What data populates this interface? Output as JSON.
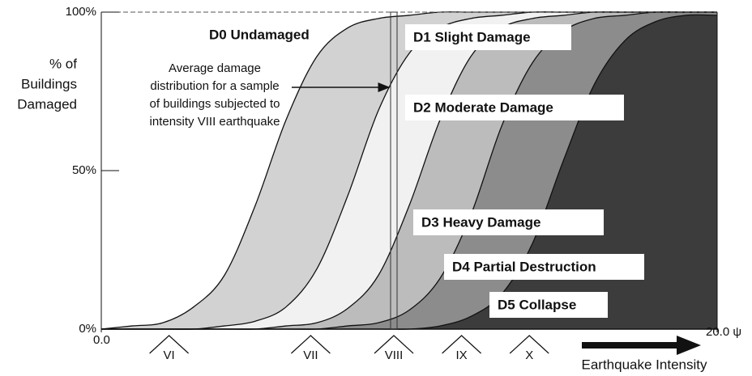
{
  "chart_data": {
    "type": "fragility",
    "y_label": [
      "% of",
      "Buildings",
      "Damaged"
    ],
    "x_label": "Earthquake Intensity",
    "base_label": "D0 Undamaged",
    "annotation": [
      "Average damage",
      "distribution for a sample",
      "of buildings subjected to",
      "intensity VIII earthquake"
    ],
    "x": [
      0,
      1,
      2,
      3,
      4,
      5,
      6,
      7,
      8,
      9,
      10,
      11,
      12,
      13,
      14,
      15,
      16,
      17,
      18,
      19,
      20
    ],
    "series": [
      {
        "name": "D1 Slight Damage",
        "color": "#d2d2d2",
        "values": [
          0,
          1,
          2,
          7,
          17,
          39,
          66,
          86,
          95,
          98,
          99,
          100,
          100,
          100,
          100,
          100,
          100,
          100,
          100,
          100,
          100
        ]
      },
      {
        "name": "D2 Moderate Damage",
        "color": "#f1f1f1",
        "values": [
          0,
          0,
          0,
          0,
          1,
          2.5,
          7,
          19,
          42,
          69,
          87,
          95,
          98,
          99,
          100,
          100,
          100,
          100,
          100,
          100,
          100
        ]
      },
      {
        "name": "D3 Heavy Damage",
        "color": "#bcbcbc",
        "values": [
          0,
          0,
          0,
          0,
          0,
          0,
          1,
          2,
          6.5,
          17,
          39,
          66,
          86,
          95,
          98,
          99,
          100,
          100,
          100,
          100,
          100
        ]
      },
      {
        "name": "D4 Partial Destruction",
        "color": "#8c8c8c",
        "values": [
          0,
          0,
          0,
          0,
          0,
          0,
          0,
          0,
          1,
          2,
          6,
          16,
          36,
          64,
          84,
          94,
          98,
          99,
          100,
          100,
          100
        ]
      },
      {
        "name": "D5 Collapse",
        "color": "#3c3c3c",
        "values": [
          0,
          0,
          0,
          0,
          0,
          0,
          0,
          0,
          0,
          0,
          0,
          1,
          4,
          11,
          27,
          53,
          77,
          91,
          97,
          99,
          99
        ]
      }
    ],
    "intensity_marks": {
      "labels": [
        "VI",
        "VII",
        "VIII",
        "IX",
        "X"
      ],
      "x": [
        2.2,
        6.8,
        9.5,
        11.7,
        13.9
      ]
    },
    "xlim": [
      0,
      20
    ],
    "ylim": [
      0,
      100
    ],
    "xticks": [
      {
        "value": 0,
        "label": "0.0"
      },
      {
        "value": 20,
        "label": "20.0 ψ"
      }
    ],
    "yticks": [
      {
        "value": 0,
        "label": "0%"
      },
      {
        "value": 50,
        "label": "50%"
      },
      {
        "value": 100,
        "label": "100%"
      }
    ]
  }
}
